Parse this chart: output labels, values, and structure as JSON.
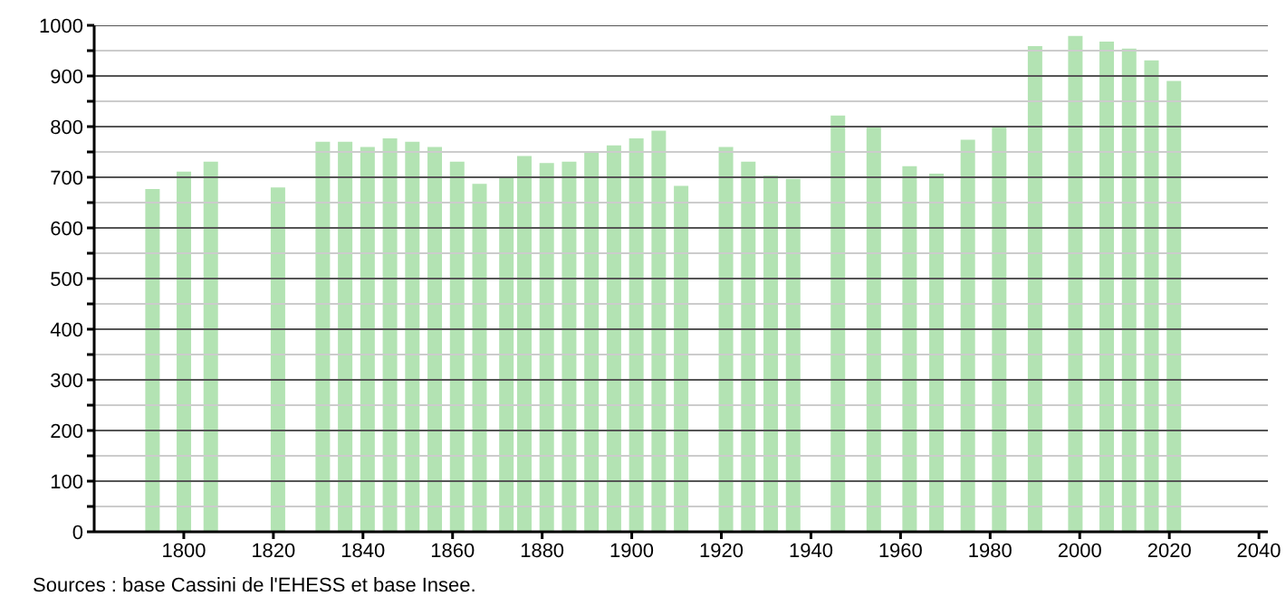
{
  "chart_data": {
    "type": "bar",
    "x": [
      1793,
      1800,
      1806,
      1821,
      1831,
      1836,
      1841,
      1846,
      1851,
      1856,
      1861,
      1866,
      1872,
      1876,
      1881,
      1886,
      1891,
      1896,
      1901,
      1906,
      1911,
      1921,
      1926,
      1931,
      1936,
      1946,
      1954,
      1962,
      1968,
      1975,
      1982,
      1990,
      1999,
      2006,
      2011,
      2016,
      2021
    ],
    "values": [
      677,
      711,
      731,
      680,
      770,
      770,
      760,
      777,
      770,
      760,
      731,
      687,
      700,
      742,
      728,
      731,
      750,
      763,
      777,
      792,
      683,
      760,
      731,
      703,
      697,
      822,
      800,
      722,
      707,
      774,
      801,
      959,
      979,
      968,
      954,
      931,
      890
    ],
    "color": "#b3e3b3",
    "xlim": [
      1780,
      2042
    ],
    "xticks": [
      1800,
      1820,
      1840,
      1860,
      1880,
      1900,
      1920,
      1940,
      1960,
      1980,
      2000,
      2020,
      2040
    ],
    "ylim": [
      0,
      1000
    ],
    "yticks": [
      0,
      {
        "value": 50,
        "label": null
      },
      100,
      {
        "value": 150,
        "label": null
      },
      200,
      {
        "value": 250,
        "label": null
      },
      300,
      {
        "value": 350,
        "label": null
      },
      400,
      {
        "value": 450,
        "label": null
      },
      500,
      {
        "value": 550,
        "label": null
      },
      600,
      {
        "value": 650,
        "label": null
      },
      700,
      {
        "value": 750,
        "label": null
      },
      800,
      {
        "value": 850,
        "label": null
      },
      900,
      {
        "value": 950,
        "label": null
      },
      1000
    ],
    "grid": "y",
    "annotations": [
      "Sources : base Cassini de l'EHESS et base Insee."
    ]
  }
}
